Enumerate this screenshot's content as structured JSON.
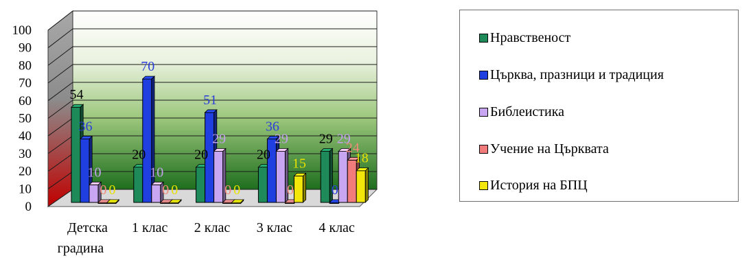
{
  "chart_data": {
    "type": "bar",
    "categories": [
      "Детска градина",
      "1 клас",
      "2 клас",
      "3 клас",
      "4 клас"
    ],
    "ylim": [
      0,
      100
    ],
    "yticks": [
      "0",
      "10",
      "20",
      "30",
      "40",
      "50",
      "60",
      "70",
      "80",
      "90",
      "100"
    ],
    "grid": true,
    "legend_position": "right",
    "series": [
      {
        "name": "Нравственост",
        "values": [
          54,
          20,
          20,
          20,
          29
        ],
        "color": "#1e8a5a",
        "label_color": "#000000"
      },
      {
        "name": "Църква, празници и традиция",
        "values": [
          36,
          70,
          51,
          36,
          0
        ],
        "color": "#1f3fe0",
        "label_color": "#2a3ddb"
      },
      {
        "name": "Библеистика",
        "values": [
          10,
          10,
          29,
          29,
          29
        ],
        "color": "#c9a6f2",
        "label_color": "#c4a0ee"
      },
      {
        "name": "Учение на Църквата",
        "values": [
          0,
          0,
          0,
          0,
          24
        ],
        "color": "#f27c7c",
        "label_color": "#f08a7a"
      },
      {
        "name": "История на БПЦ",
        "values": [
          0,
          0,
          0,
          15,
          18
        ],
        "color": "#f2e60a",
        "label_color": "#e8e000"
      }
    ]
  }
}
